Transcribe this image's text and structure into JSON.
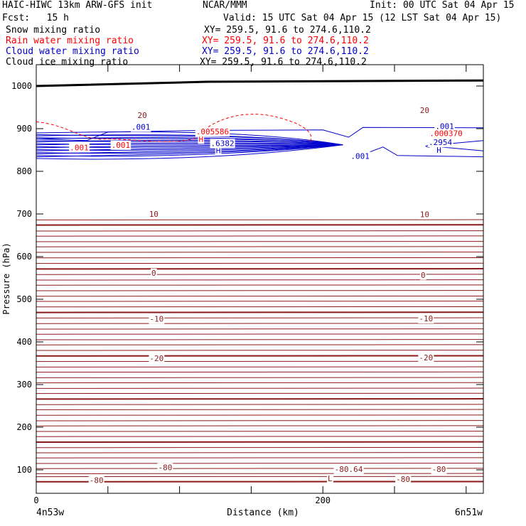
{
  "header": {
    "title": "HAIC-HIWC 13km ARW-GFS init",
    "source": "NCAR/MMM",
    "init": "Init: 00 UTC Sat 04 Apr 15",
    "fcst": "Fcst:   15 h",
    "valid": "Valid: 15 UTC Sat 04 Apr 15 (12 LST Sat 04 Apr 15)",
    "fields": [
      {
        "name": "Snow mixing ratio",
        "xy": "XY= 259.5, 91.6 to 274.6,110.2",
        "color": "#000000"
      },
      {
        "name": "Rain water mixing ratio",
        "xy": "XY= 259.5, 91.6 to 274.6,110.2",
        "color": "#ff0000"
      },
      {
        "name": "Cloud water mixing ratio",
        "xy": "XY= 259.5, 91.6 to 274.6,110.2",
        "color": "#0000cc"
      },
      {
        "name": "Cloud ice mixing ratio",
        "xy": "XY= 259.5, 91.6 to 274.6,110.2",
        "color": "#000000"
      }
    ]
  },
  "chart_data": {
    "type": "cross-section contour",
    "xlabel": "Distance (km)",
    "ylabel": "Pressure (hPa)",
    "xlim": [
      0,
      312
    ],
    "ylim": [
      1050,
      45
    ],
    "xticks": [
      "0",
      "200"
    ],
    "yticks": [
      "100",
      "200",
      "300",
      "400",
      "500",
      "600",
      "700",
      "800",
      "900",
      "1000"
    ],
    "x_endpoints": {
      "left": "4n53w",
      "right": "6n51w"
    },
    "temperature_color": "#8b1a1a",
    "temperature_labels": [
      {
        "text": "-80",
        "x": 42,
        "p": 76
      },
      {
        "text": "-80",
        "x": 90,
        "p": 106
      },
      {
        "text": "L",
        "x": 205,
        "p": 80
      },
      {
        "text": "-80.64",
        "x": 218,
        "p": 102
      },
      {
        "text": "-80",
        "x": 256,
        "p": 78
      },
      {
        "text": "-80",
        "x": 281,
        "p": 102
      },
      {
        "text": "-20",
        "x": 84,
        "p": 362
      },
      {
        "text": "-20",
        "x": 272,
        "p": 363
      },
      {
        "text": "-10",
        "x": 84,
        "p": 454
      },
      {
        "text": "-10",
        "x": 272,
        "p": 455
      },
      {
        "text": "0",
        "x": 82,
        "p": 562
      },
      {
        "text": "0",
        "x": 270,
        "p": 557
      },
      {
        "text": "10",
        "x": 82,
        "p": 700
      },
      {
        "text": "10",
        "x": 271,
        "p": 699
      },
      {
        "text": "20",
        "x": 74,
        "p": 932
      },
      {
        "text": "20",
        "x": 271,
        "p": 943
      }
    ],
    "cloud_water_labels": [
      {
        "text": ".001",
        "x": 226,
        "p": 836
      },
      {
        "text": "H",
        "x": 127,
        "p": 849
      },
      {
        "text": ".6382",
        "x": 130,
        "p": 866
      },
      {
        "text": "<",
        "x": 273,
        "p": 860
      },
      {
        "text": "H",
        "x": 281,
        "p": 850
      },
      {
        "text": ".2954",
        "x": 282,
        "p": 868
      },
      {
        "text": ".001",
        "x": 285,
        "p": 906
      },
      {
        "text": ".001",
        "x": 73,
        "p": 904
      }
    ],
    "rain_labels": [
      {
        "text": ".001",
        "x": 30,
        "p": 856
      },
      {
        "text": ".001",
        "x": 59,
        "p": 862
      },
      {
        "text": "H",
        "x": 115,
        "p": 876
      },
      {
        "text": ".005586",
        "x": 123,
        "p": 893
      },
      {
        "text": ".000370",
        "x": 286,
        "p": 889
      }
    ]
  }
}
